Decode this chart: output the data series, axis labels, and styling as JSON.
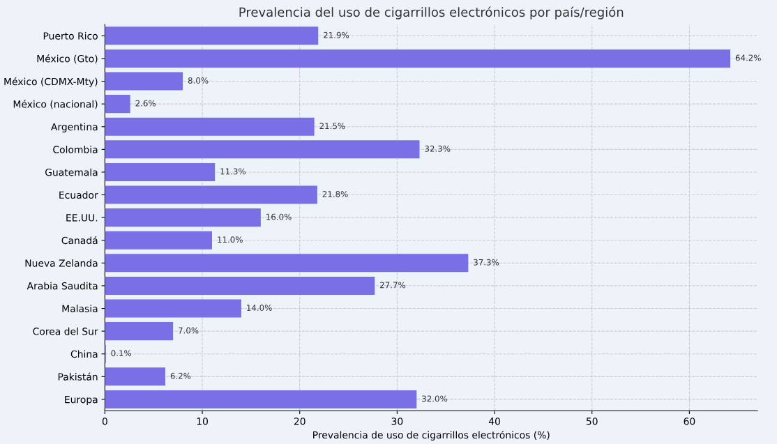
{
  "chart_data": {
    "type": "bar",
    "orientation": "horizontal",
    "title": "Prevalencia del uso de cigarrillos electrónicos por país/región",
    "xlabel": "Prevalencia de uso de cigarrillos electrónicos (%)",
    "categories": [
      "Puerto Rico",
      "México (Gto)",
      "México (CDMX-Mty)",
      "México (nacional)",
      "Argentina",
      "Colombia",
      "Guatemala",
      "Ecuador",
      "EE.UU.",
      "Canadá",
      "Nueva Zelanda",
      "Arabia Saudita",
      "Malasia",
      "Corea del Sur",
      "China",
      "Pakistán",
      "Europa"
    ],
    "values": [
      21.9,
      64.2,
      8.0,
      2.6,
      21.5,
      32.3,
      11.3,
      21.8,
      16.0,
      11.0,
      37.3,
      27.7,
      14.0,
      7.0,
      0.1,
      6.2,
      32.0
    ],
    "value_labels": [
      "21.9%",
      "64.2%",
      "8.0%",
      "2.6%",
      "21.5%",
      "32.3%",
      "11.3%",
      "21.8%",
      "16.0%",
      "11.0%",
      "37.3%",
      "27.7%",
      "14.0%",
      "7.0%",
      "0.1%",
      "6.2%",
      "32.0%"
    ],
    "color": "#7b6fe6",
    "xlim": [
      0,
      67
    ],
    "xticks": [
      0,
      10,
      20,
      30,
      40,
      50,
      60
    ],
    "grid": true
  }
}
